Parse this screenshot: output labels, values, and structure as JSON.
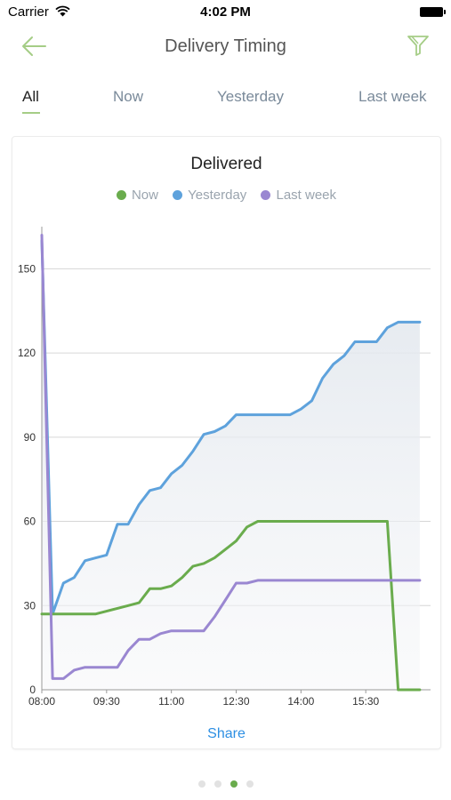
{
  "status_bar": {
    "carrier": "Carrier",
    "time": "4:02 PM"
  },
  "nav": {
    "title": "Delivery Timing",
    "back_icon": "back-arrow-icon",
    "filter_icon": "filter-icon"
  },
  "tabs": [
    {
      "label": "All",
      "active": true
    },
    {
      "label": "Now",
      "active": false
    },
    {
      "label": "Yesterday",
      "active": false
    },
    {
      "label": "Last week",
      "active": false
    }
  ],
  "colors": {
    "accent": "#a5cd86",
    "now": "#6aac4d",
    "yesterday": "#5ea2dc",
    "last_week": "#9a87d1",
    "share": "#2d8fe3"
  },
  "chart_data": {
    "type": "line",
    "title": "Delivered",
    "xlabel": "",
    "ylabel": "",
    "ylim": [
      0,
      165
    ],
    "xlim": [
      "08:00",
      "17:00"
    ],
    "x_ticks": [
      "08:00",
      "09:30",
      "11:00",
      "12:30",
      "14:00",
      "15:30"
    ],
    "y_ticks": [
      0,
      30,
      60,
      90,
      120,
      150
    ],
    "grid": true,
    "legend": "top-center",
    "series": [
      {
        "name": "Now",
        "color": "#6aac4d",
        "points": [
          [
            "08:00",
            27
          ],
          [
            "09:00",
            27
          ],
          [
            "09:15",
            27
          ],
          [
            "09:30",
            28
          ],
          [
            "09:45",
            29
          ],
          [
            "10:00",
            30
          ],
          [
            "10:15",
            31
          ],
          [
            "10:30",
            36
          ],
          [
            "10:45",
            36
          ],
          [
            "11:00",
            37
          ],
          [
            "11:15",
            40
          ],
          [
            "11:30",
            44
          ],
          [
            "11:45",
            45
          ],
          [
            "12:00",
            47
          ],
          [
            "12:15",
            50
          ],
          [
            "12:30",
            53
          ],
          [
            "12:45",
            58
          ],
          [
            "13:00",
            60
          ],
          [
            "15:45",
            60
          ],
          [
            "16:00",
            60
          ],
          [
            "16:15",
            0
          ],
          [
            "16:45",
            0
          ]
        ]
      },
      {
        "name": "Yesterday",
        "color": "#5ea2dc",
        "points": [
          [
            "08:00",
            160
          ],
          [
            "08:15",
            27
          ],
          [
            "08:30",
            38
          ],
          [
            "08:45",
            40
          ],
          [
            "09:00",
            46
          ],
          [
            "09:15",
            47
          ],
          [
            "09:30",
            48
          ],
          [
            "09:45",
            59
          ],
          [
            "10:00",
            59
          ],
          [
            "10:15",
            66
          ],
          [
            "10:30",
            71
          ],
          [
            "10:45",
            72
          ],
          [
            "11:00",
            77
          ],
          [
            "11:15",
            80
          ],
          [
            "11:30",
            85
          ],
          [
            "11:45",
            91
          ],
          [
            "12:00",
            92
          ],
          [
            "12:15",
            94
          ],
          [
            "12:30",
            98
          ],
          [
            "13:30",
            98
          ],
          [
            "13:45",
            98
          ],
          [
            "14:00",
            100
          ],
          [
            "14:15",
            103
          ],
          [
            "14:30",
            111
          ],
          [
            "14:45",
            116
          ],
          [
            "15:00",
            119
          ],
          [
            "15:15",
            124
          ],
          [
            "15:45",
            124
          ],
          [
            "16:00",
            129
          ],
          [
            "16:15",
            131
          ],
          [
            "16:45",
            131
          ]
        ]
      },
      {
        "name": "Last week",
        "color": "#9a87d1",
        "points": [
          [
            "08:00",
            162
          ],
          [
            "08:15",
            4
          ],
          [
            "08:30",
            4
          ],
          [
            "08:45",
            7
          ],
          [
            "09:00",
            8
          ],
          [
            "09:15",
            8
          ],
          [
            "09:30",
            8
          ],
          [
            "09:45",
            8
          ],
          [
            "10:00",
            14
          ],
          [
            "10:15",
            18
          ],
          [
            "10:30",
            18
          ],
          [
            "10:45",
            20
          ],
          [
            "11:00",
            21
          ],
          [
            "11:30",
            21
          ],
          [
            "11:45",
            21
          ],
          [
            "12:00",
            26
          ],
          [
            "12:15",
            32
          ],
          [
            "12:30",
            38
          ],
          [
            "12:45",
            38
          ],
          [
            "13:00",
            39
          ],
          [
            "16:45",
            39
          ]
        ]
      }
    ]
  },
  "share_label": "Share",
  "page_indicator": {
    "count": 4,
    "active_index": 2
  }
}
